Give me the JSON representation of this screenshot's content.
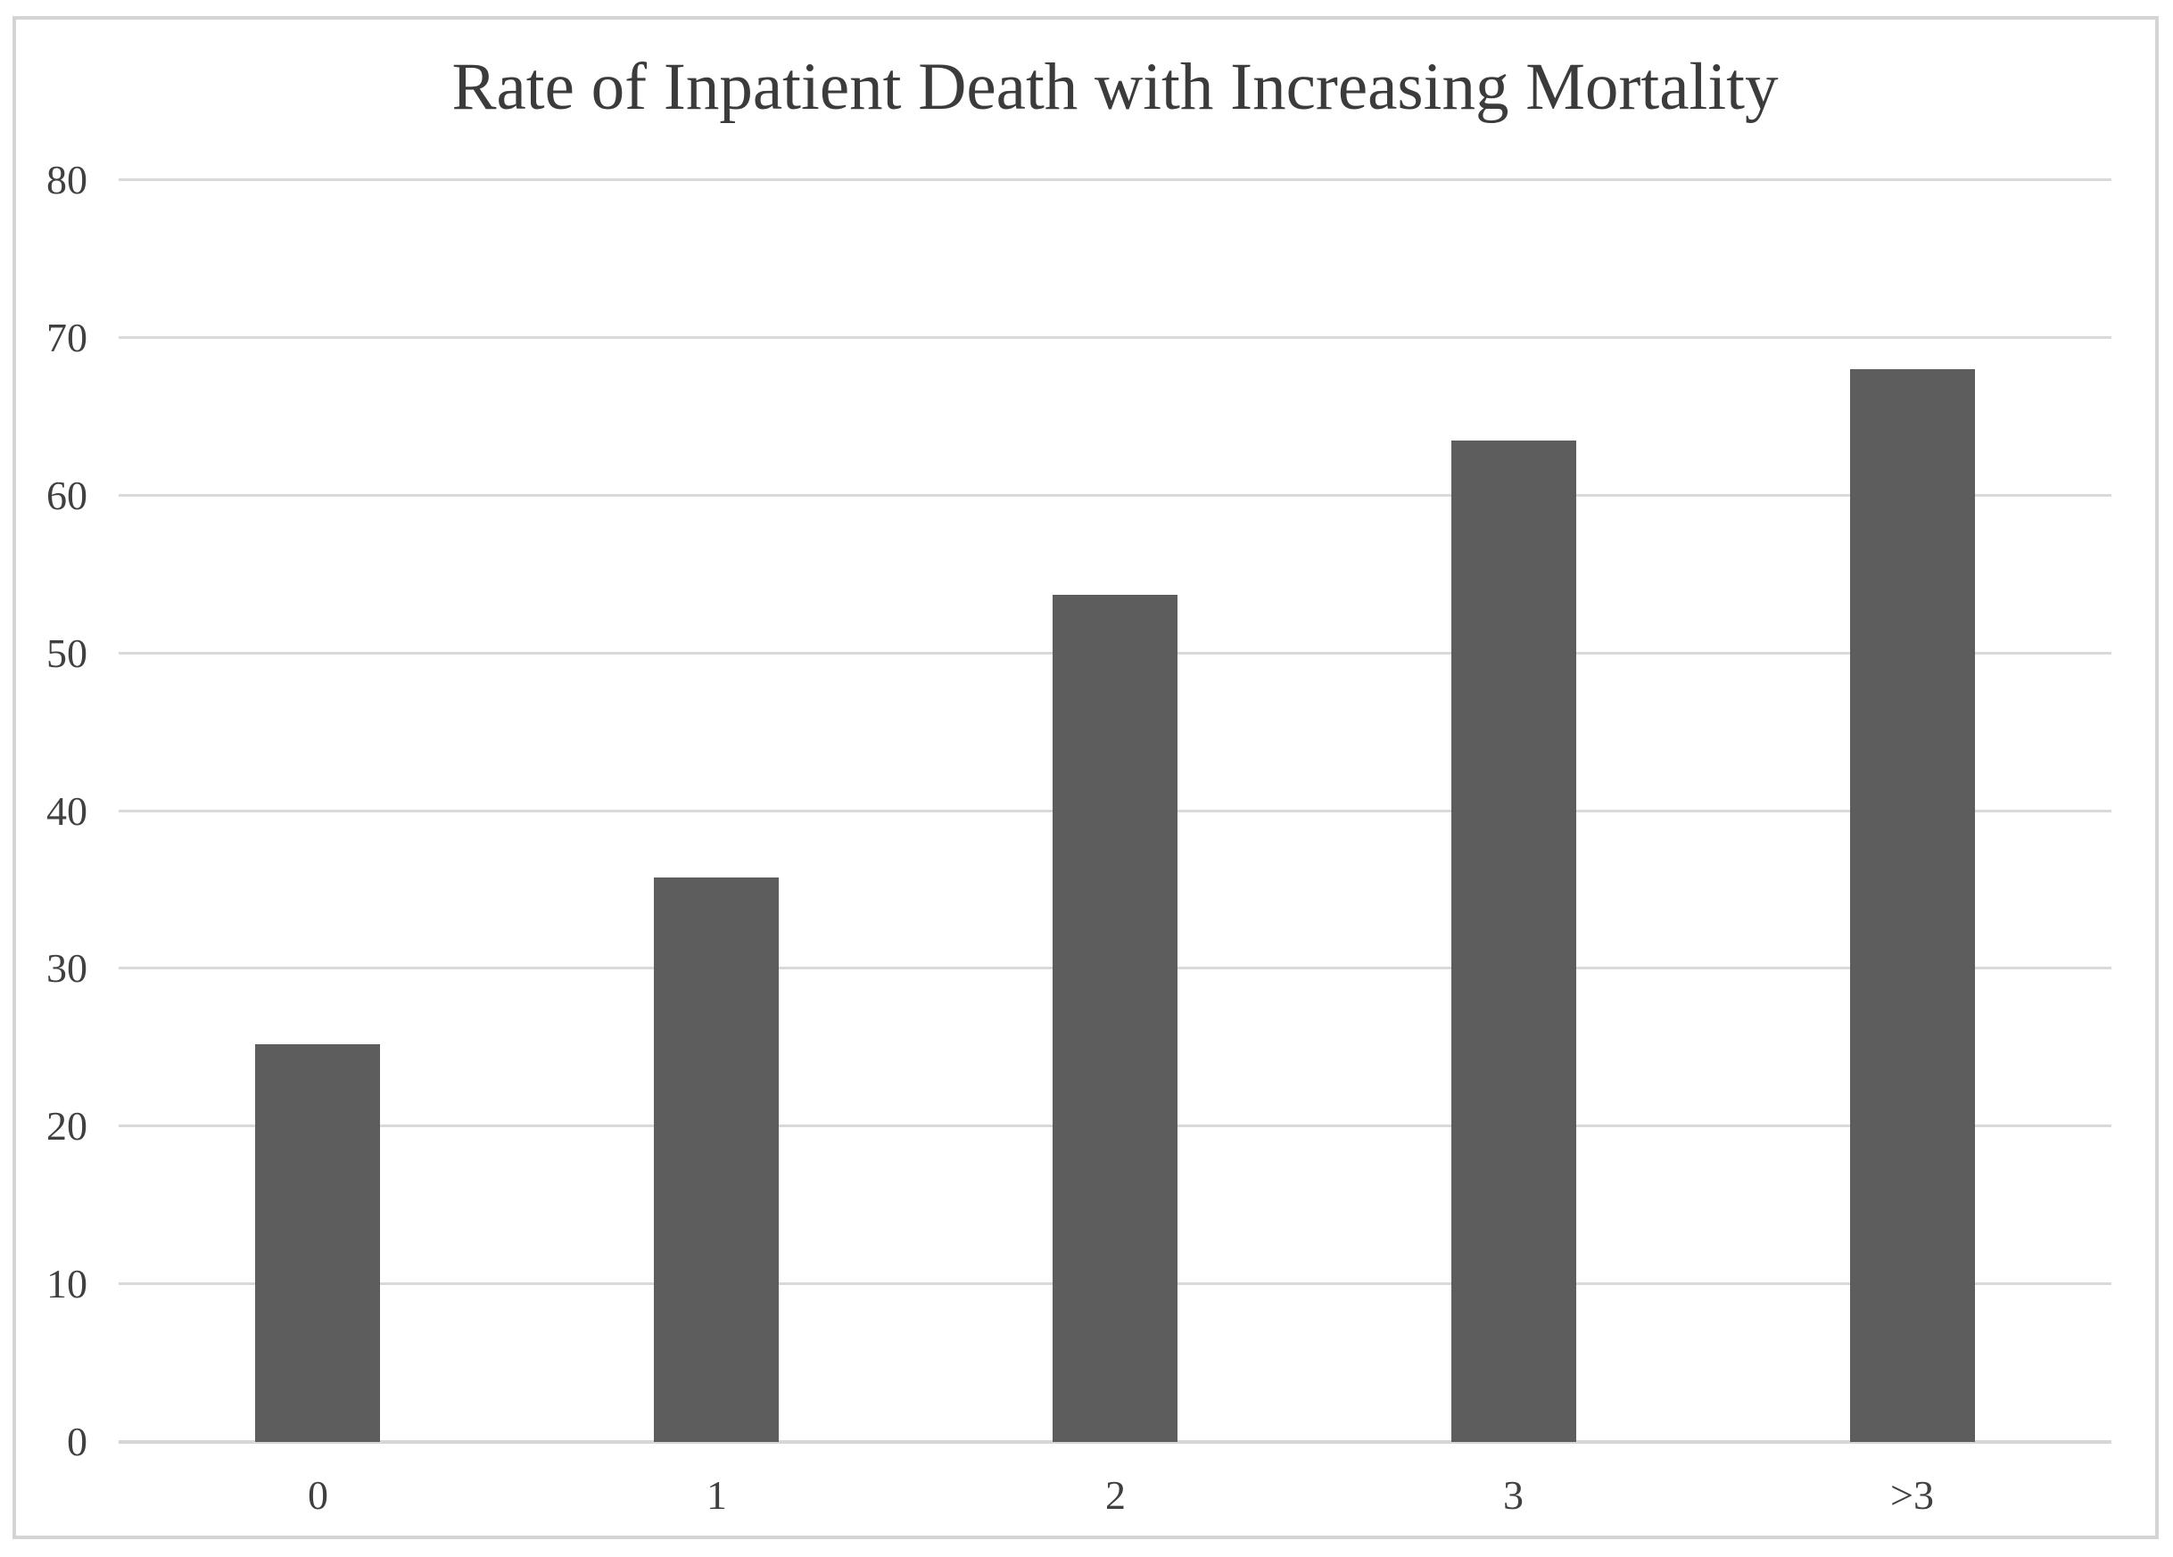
{
  "chart_data": {
    "type": "bar",
    "title": "Rate of Inpatient Death with Increasing Mortality",
    "categories": [
      "0",
      "1",
      "2",
      "3",
      ">3"
    ],
    "values": [
      25.2,
      35.8,
      53.7,
      63.5,
      68
    ],
    "xlabel": "",
    "ylabel": "",
    "ylim": [
      0,
      80
    ],
    "yticks": [
      0,
      10,
      20,
      30,
      40,
      50,
      60,
      70,
      80
    ],
    "grid": true,
    "legend": "none",
    "series_name": "Rate of Inpatient Death"
  },
  "colors": {
    "bar": "#5d5d5d",
    "gridline": "#d9d9d9",
    "axis_line": "#d6d6d6",
    "frame_border": "#d4d4d4",
    "title_text": "#3b3b3b",
    "tick_text": "#404040",
    "background": "#ffffff"
  }
}
